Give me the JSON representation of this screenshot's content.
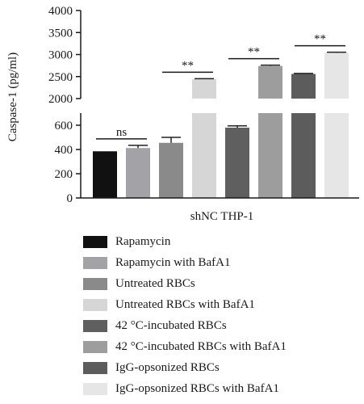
{
  "chart_data": {
    "type": "bar",
    "title": "",
    "ylabel": "Caspase-1 (pg/ml)",
    "xlabel": "shNC THP-1",
    "broken_axis": {
      "lower_range": [
        0,
        700
      ],
      "upper_range": [
        2000,
        4000
      ],
      "lower_ticks": [
        0,
        200,
        400,
        600
      ],
      "upper_ticks": [
        2000,
        2500,
        3000,
        3500,
        4000
      ]
    },
    "grid": false,
    "legend_position": "bottom",
    "series": [
      {
        "name": "Rapamycin",
        "value": 385,
        "error": 0,
        "color": "#111111"
      },
      {
        "name": "Rapamycin with BafA1",
        "value": 412,
        "error": 22,
        "color": "#a3a3a7"
      },
      {
        "name": "Untreated RBCs",
        "value": 455,
        "error": 45,
        "color": "#8a8a8a"
      },
      {
        "name": "Untreated RBCs with BafA1",
        "value": 2440,
        "error": 12,
        "color": "#d6d6d6"
      },
      {
        "name": "42 °C-incubated RBCs",
        "value": 580,
        "error": 15,
        "color": "#5f5f5f"
      },
      {
        "name": "42 °C-incubated RBCs with BafA1",
        "value": 2740,
        "error": 20,
        "color": "#9d9d9d"
      },
      {
        "name": "IgG-opsonized RBCs",
        "value": 2560,
        "error": 12,
        "color": "#5c5c5c"
      },
      {
        "name": "IgG-opsonized RBCs with BafA1",
        "value": 3040,
        "error": 12,
        "color": "#e6e6e6"
      }
    ],
    "annotations": [
      {
        "text": "ns",
        "between": [
          0,
          1
        ]
      },
      {
        "text": "**",
        "between": [
          2,
          3
        ]
      },
      {
        "text": "**",
        "between": [
          4,
          5
        ]
      },
      {
        "text": "**",
        "between": [
          6,
          7
        ]
      }
    ]
  }
}
